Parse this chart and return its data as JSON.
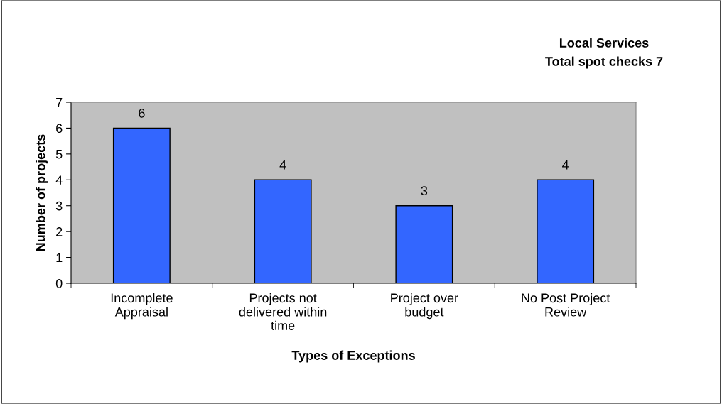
{
  "chart_data": {
    "type": "bar",
    "title": "Local Services",
    "subtitle": "Total spot checks 7",
    "xlabel": "Types of Exceptions",
    "ylabel": "Number of projects",
    "categories": [
      "Incomplete Appraisal",
      "Projects not delivered within time",
      "Project over budget",
      "No Post Project Review"
    ],
    "values": [
      6,
      4,
      3,
      4
    ],
    "color": "#3366ff",
    "ylim": [
      0,
      7
    ],
    "yticks": [
      0,
      1,
      2,
      3,
      4,
      5,
      6,
      7
    ],
    "grid": false,
    "data_labels": true
  }
}
